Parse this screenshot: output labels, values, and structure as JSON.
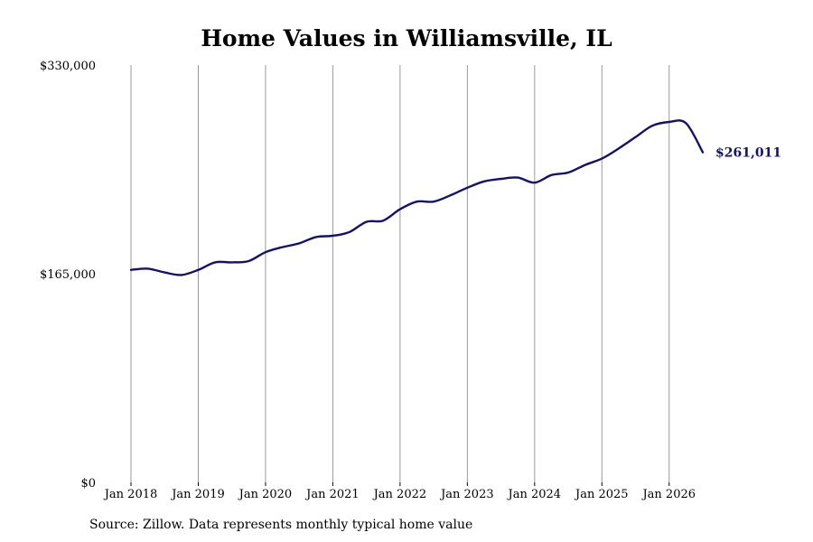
{
  "chart_data": {
    "type": "line",
    "title": "Home Values in Williamsville, IL",
    "source_note": "Source: Zillow. Data represents monthly typical home value",
    "xlabel": "",
    "ylabel": "",
    "ylim": [
      0,
      330000
    ],
    "xlim": [
      "2018-01",
      "2026-07"
    ],
    "y_ticks": [
      0,
      165000,
      330000
    ],
    "y_tick_labels": [
      "$0",
      "$165,000",
      "$330,000"
    ],
    "x_ticks": [
      "2018-01",
      "2019-01",
      "2020-01",
      "2021-01",
      "2022-01",
      "2023-01",
      "2024-01",
      "2025-01",
      "2026-01"
    ],
    "x_tick_labels": [
      "Jan 2018",
      "Jan 2019",
      "Jan 2020",
      "Jan 2021",
      "Jan 2022",
      "Jan 2023",
      "Jan 2024",
      "Jan 2025",
      "Jan 2026"
    ],
    "grid": "vertical",
    "line_color": "#14135f",
    "grid_color": "#999999",
    "end_label": "$261,011",
    "series": [
      {
        "x": [
          "2018-01",
          "2018-04",
          "2018-07",
          "2018-10",
          "2019-01",
          "2019-04",
          "2019-07",
          "2019-10",
          "2020-01",
          "2020-04",
          "2020-07",
          "2020-10",
          "2021-01",
          "2021-04",
          "2021-07",
          "2021-10",
          "2022-01",
          "2022-04",
          "2022-07",
          "2022-10",
          "2023-01",
          "2023-04",
          "2023-07",
          "2023-10",
          "2024-01",
          "2024-04",
          "2024-07",
          "2024-10",
          "2025-01",
          "2025-04",
          "2025-07",
          "2025-10",
          "2026-01",
          "2026-04",
          "2026-07"
        ],
        "y": [
          168000,
          169000,
          166000,
          164000,
          168000,
          174000,
          174000,
          175000,
          182000,
          186000,
          189000,
          194000,
          195000,
          198000,
          206000,
          207000,
          216000,
          222000,
          222000,
          227000,
          233000,
          238000,
          240000,
          241000,
          237000,
          243000,
          245000,
          251000,
          256000,
          264000,
          273000,
          282000,
          285000,
          284000,
          261011
        ]
      }
    ]
  }
}
